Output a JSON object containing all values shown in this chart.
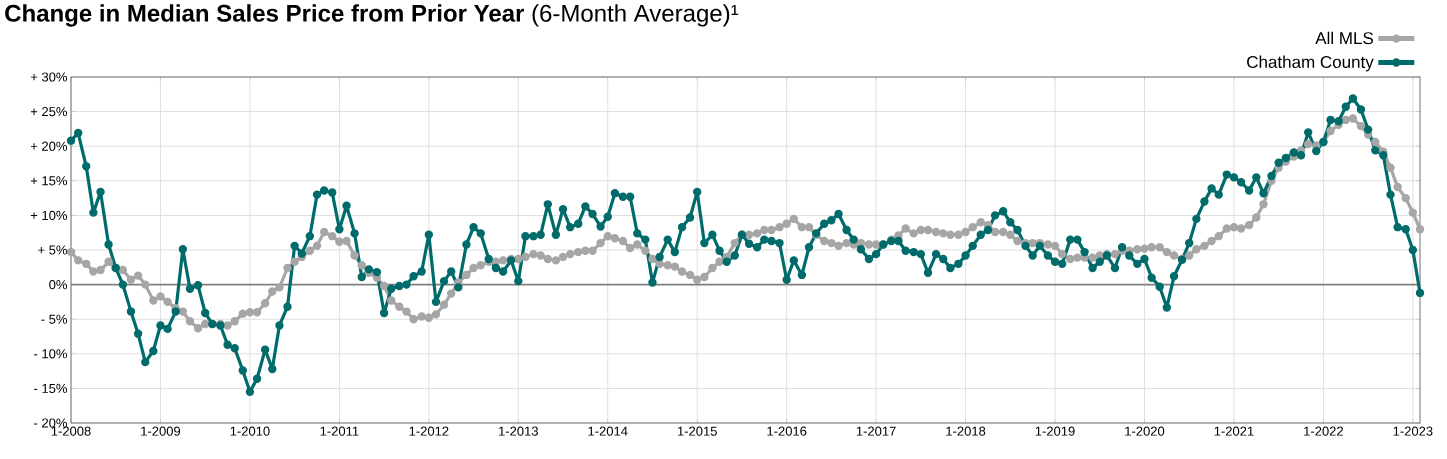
{
  "chart_data": {
    "type": "line",
    "title": "**Change in Median Sales Price from Prior Year** (6-Month Average)¹",
    "x": [
      "2008-01",
      "2008-02",
      "2008-03",
      "2008-04",
      "2008-05",
      "2008-06",
      "2008-07",
      "2008-08",
      "2008-09",
      "2008-10",
      "2008-11",
      "2008-12",
      "2009-01",
      "2009-02",
      "2009-03",
      "2009-04",
      "2009-05",
      "2009-06",
      "2009-07",
      "2009-08",
      "2009-09",
      "2009-10",
      "2009-11",
      "2009-12",
      "2010-01",
      "2010-02",
      "2010-03",
      "2010-04",
      "2010-05",
      "2010-06",
      "2010-07",
      "2010-08",
      "2010-09",
      "2010-10",
      "2010-11",
      "2010-12",
      "2011-01",
      "2011-02",
      "2011-03",
      "2011-04",
      "2011-05",
      "2011-06",
      "2011-07",
      "2011-08",
      "2011-09",
      "2011-10",
      "2011-11",
      "2011-12",
      "2012-01",
      "2012-02",
      "2012-03",
      "2012-04",
      "2012-05",
      "2012-06",
      "2012-07",
      "2012-08",
      "2012-09",
      "2012-10",
      "2012-11",
      "2012-12",
      "2013-01",
      "2013-02",
      "2013-03",
      "2013-04",
      "2013-05",
      "2013-06",
      "2013-07",
      "2013-08",
      "2013-09",
      "2013-10",
      "2013-11",
      "2013-12",
      "2014-01",
      "2014-02",
      "2014-03",
      "2014-04",
      "2014-05",
      "2014-06",
      "2014-07",
      "2014-08",
      "2014-09",
      "2014-10",
      "2014-11",
      "2014-12",
      "2015-01",
      "2015-02",
      "2015-03",
      "2015-04",
      "2015-05",
      "2015-06",
      "2015-07",
      "2015-08",
      "2015-09",
      "2015-10",
      "2015-11",
      "2015-12",
      "2016-01",
      "2016-02",
      "2016-03",
      "2016-04",
      "2016-05",
      "2016-06",
      "2016-07",
      "2016-08",
      "2016-09",
      "2016-10",
      "2016-11",
      "2016-12",
      "2017-01",
      "2017-02",
      "2017-03",
      "2017-04",
      "2017-05",
      "2017-06",
      "2017-07",
      "2017-08",
      "2017-09",
      "2017-10",
      "2017-11",
      "2017-12",
      "2018-01",
      "2018-02",
      "2018-03",
      "2018-04",
      "2018-05",
      "2018-06",
      "2018-07",
      "2018-08",
      "2018-09",
      "2018-10",
      "2018-11",
      "2018-12",
      "2019-01",
      "2019-02",
      "2019-03",
      "2019-04",
      "2019-05",
      "2019-06",
      "2019-07",
      "2019-08",
      "2019-09",
      "2019-10",
      "2019-11",
      "2019-12",
      "2020-01",
      "2020-02",
      "2020-03",
      "2020-04",
      "2020-05",
      "2020-06",
      "2020-07",
      "2020-08",
      "2020-09",
      "2020-10",
      "2020-11",
      "2020-12",
      "2021-01",
      "2021-02",
      "2021-03",
      "2021-04",
      "2021-05",
      "2021-06",
      "2021-07",
      "2021-08",
      "2021-09",
      "2021-10",
      "2021-11",
      "2021-12",
      "2022-01",
      "2022-02",
      "2022-03",
      "2022-04",
      "2022-05",
      "2022-06",
      "2022-07",
      "2022-08",
      "2022-09",
      "2022-10",
      "2022-11",
      "2022-12",
      "2023-01",
      "2023-02"
    ],
    "series": [
      {
        "name": "All MLS",
        "color": "#a6a6a6",
        "values": [
          4.7,
          3.5,
          3.0,
          1.9,
          2.1,
          3.3,
          2.4,
          2.1,
          0.7,
          1.3,
          0.0,
          -2.3,
          -1.7,
          -2.5,
          -3.4,
          -3.9,
          -5.3,
          -6.3,
          -5.7,
          -5.7,
          -5.7,
          -5.9,
          -5.3,
          -4.2,
          -4.0,
          -4.0,
          -2.7,
          -1.0,
          -0.4,
          2.4,
          3.3,
          4.0,
          4.9,
          5.6,
          7.6,
          7.0,
          6.2,
          6.3,
          4.2,
          2.8,
          1.7,
          1.0,
          -0.2,
          -2.3,
          -3.2,
          -3.9,
          -5.0,
          -4.6,
          -4.8,
          -4.3,
          -2.9,
          -1.3,
          0.3,
          1.4,
          2.4,
          2.8,
          3.3,
          3.3,
          3.5,
          3.7,
          3.7,
          4.0,
          4.4,
          4.2,
          3.7,
          3.5,
          4.0,
          4.4,
          4.7,
          4.9,
          4.9,
          6.0,
          7.0,
          6.7,
          6.3,
          5.3,
          5.8,
          4.9,
          3.7,
          3.0,
          2.8,
          2.6,
          1.9,
          1.4,
          0.7,
          1.1,
          2.4,
          3.3,
          4.0,
          6.0,
          7.2,
          7.2,
          7.4,
          7.9,
          7.9,
          8.3,
          8.8,
          9.5,
          8.3,
          8.3,
          7.2,
          6.3,
          6.0,
          5.6,
          6.0,
          5.8,
          6.0,
          5.8,
          5.8,
          5.8,
          6.5,
          7.1,
          8.1,
          7.4,
          7.9,
          7.9,
          7.6,
          7.4,
          7.2,
          7.2,
          7.6,
          8.3,
          9.0,
          8.6,
          7.6,
          7.6,
          7.2,
          6.3,
          6.0,
          6.0,
          6.0,
          5.8,
          5.6,
          4.4,
          3.7,
          3.9,
          3.9,
          3.9,
          4.2,
          4.4,
          4.4,
          4.9,
          4.9,
          5.1,
          5.2,
          5.4,
          5.4,
          4.7,
          4.2,
          3.7,
          4.2,
          5.1,
          5.6,
          6.3,
          7.0,
          8.1,
          8.3,
          8.1,
          8.6,
          9.7,
          11.6,
          15.0,
          16.9,
          17.8,
          18.5,
          19.4,
          20.3,
          20.1,
          20.6,
          22.2,
          23.1,
          23.8,
          24.0,
          22.9,
          21.7,
          20.6,
          19.2,
          16.9,
          14.1,
          12.5,
          10.4,
          8.0
        ]
      },
      {
        "name": "Chatham County",
        "color": "#006b6b",
        "values": [
          20.8,
          21.9,
          17.1,
          10.4,
          13.4,
          5.8,
          2.4,
          0.0,
          -3.9,
          -7.1,
          -11.2,
          -9.6,
          -5.9,
          -6.4,
          -3.9,
          5.1,
          -0.6,
          -0.1,
          -4.1,
          -5.7,
          -5.9,
          -8.7,
          -9.2,
          -12.4,
          -15.5,
          -13.6,
          -9.4,
          -12.2,
          -5.9,
          -3.2,
          5.6,
          4.5,
          7.0,
          13.0,
          13.6,
          13.3,
          8.0,
          11.4,
          7.4,
          1.1,
          2.2,
          1.8,
          -4.1,
          -0.6,
          -0.2,
          0.0,
          1.2,
          1.9,
          7.2,
          -2.5,
          0.5,
          1.9,
          -0.4,
          5.8,
          8.3,
          7.4,
          3.7,
          2.4,
          1.9,
          3.5,
          0.5,
          7.0,
          7.0,
          7.2,
          11.6,
          7.2,
          10.9,
          8.3,
          8.8,
          11.3,
          10.2,
          8.4,
          9.8,
          13.2,
          12.7,
          12.7,
          7.4,
          6.5,
          0.3,
          4.0,
          6.5,
          4.7,
          8.3,
          9.7,
          13.4,
          6.0,
          7.2,
          4.9,
          3.3,
          4.2,
          7.2,
          5.9,
          5.4,
          6.5,
          6.3,
          6.0,
          0.7,
          3.5,
          1.4,
          5.4,
          7.4,
          8.8,
          9.3,
          10.2,
          7.9,
          6.5,
          5.1,
          3.7,
          4.4,
          5.8,
          6.3,
          6.3,
          4.9,
          4.7,
          4.4,
          1.7,
          4.4,
          3.7,
          2.4,
          3.0,
          4.2,
          5.6,
          7.2,
          7.9,
          10.0,
          10.6,
          9.0,
          7.9,
          5.6,
          4.2,
          5.6,
          4.2,
          3.3,
          3.0,
          6.5,
          6.5,
          4.7,
          2.4,
          3.3,
          4.2,
          2.4,
          5.4,
          4.2,
          3.0,
          3.7,
          1.0,
          -0.3,
          -3.3,
          1.2,
          3.6,
          6.0,
          9.5,
          12.0,
          13.9,
          13.0,
          15.9,
          15.5,
          14.8,
          13.6,
          15.5,
          13.2,
          15.7,
          17.6,
          18.3,
          19.1,
          18.7,
          22.0,
          19.3,
          20.6,
          23.8,
          23.6,
          25.7,
          26.9,
          25.3,
          22.4,
          19.4,
          18.7,
          13.0,
          8.3,
          8.0,
          5.0,
          -1.2
        ]
      }
    ],
    "xlim": [
      "2008-01",
      "2023-02"
    ],
    "ylim": [
      -20,
      30
    ],
    "xticks": [
      {
        "value": "2008-01",
        "label": "1-2008"
      },
      {
        "value": "2009-01",
        "label": "1-2009"
      },
      {
        "value": "2010-01",
        "label": "1-2010"
      },
      {
        "value": "2011-01",
        "label": "1-2011"
      },
      {
        "value": "2012-01",
        "label": "1-2012"
      },
      {
        "value": "2013-01",
        "label": "1-2013"
      },
      {
        "value": "2014-01",
        "label": "1-2014"
      },
      {
        "value": "2015-01",
        "label": "1-2015"
      },
      {
        "value": "2016-01",
        "label": "1-2016"
      },
      {
        "value": "2017-01",
        "label": "1-2017"
      },
      {
        "value": "2018-01",
        "label": "1-2018"
      },
      {
        "value": "2019-01",
        "label": "1-2019"
      },
      {
        "value": "2020-01",
        "label": "1-2020"
      },
      {
        "value": "2021-01",
        "label": "1-2021"
      },
      {
        "value": "2022-01",
        "label": "1-2022"
      },
      {
        "value": "2023-01",
        "label": "1-2023"
      }
    ],
    "yticks": [
      {
        "value": -20,
        "label": "- 20%"
      },
      {
        "value": -15,
        "label": "- 15%"
      },
      {
        "value": -10,
        "label": "- 10%"
      },
      {
        "value": -5,
        "label": "- 5%"
      },
      {
        "value": 0,
        "label": "0%"
      },
      {
        "value": 5,
        "label": "+ 5%"
      },
      {
        "value": 10,
        "label": "+ 10%"
      },
      {
        "value": 15,
        "label": "+ 15%"
      },
      {
        "value": 20,
        "label": "+ 20%"
      },
      {
        "value": 25,
        "label": "+ 25%"
      },
      {
        "value": 30,
        "label": "+ 30%"
      }
    ],
    "grid": true,
    "legend": "top right",
    "marker": "circle",
    "ref_lines": [
      {
        "axis": "y",
        "value": 0,
        "color": "#808080"
      }
    ]
  }
}
